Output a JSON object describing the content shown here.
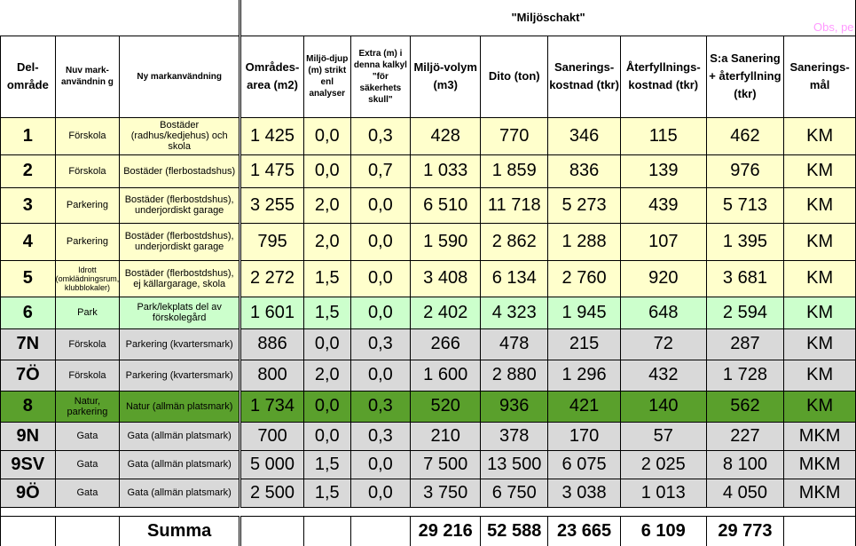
{
  "banner": {
    "title": "\"Miljöschakt\"",
    "obs": "Obs, pe"
  },
  "headers": {
    "zone": "Del-område",
    "current_use": "Nuv mark-användnin g",
    "new_use": "Ny markanvändning",
    "area": "Områdes-area (m2)",
    "depth": "Miljö-djup (m) strikt enl analyser",
    "extra": "Extra (m) i denna kalkyl \"för säkerhets skull\"",
    "volume": "Miljö-volym (m3)",
    "tons": "Dito (ton)",
    "remediation_cost": "Sanerings-kostnad (tkr)",
    "backfill_cost": "Återfyllnings-kostnad (tkr)",
    "total_cost": "S:a Sanering + återfyllning (tkr)",
    "target": "Sanerings-mål"
  },
  "rows": [
    {
      "zone": "1",
      "current": "Förskola",
      "new": "Bostäder (radhus/kedjehus) och skola",
      "area": "1 425",
      "depth": "0,0",
      "extra": "0,3",
      "volume": "428",
      "tons": "770",
      "rem": "346",
      "back": "115",
      "total": "462",
      "target": "KM"
    },
    {
      "zone": "2",
      "current": "Förskola",
      "new": "Bostäder (flerbostadshus)",
      "area": "1 475",
      "depth": "0,0",
      "extra": "0,7",
      "volume": "1 033",
      "tons": "1 859",
      "rem": "836",
      "back": "139",
      "total": "976",
      "target": "KM"
    },
    {
      "zone": "3",
      "current": "Parkering",
      "new": "Bostäder (flerbostdshus), underjordiskt garage",
      "area": "3 255",
      "depth": "2,0",
      "extra": "0,0",
      "volume": "6 510",
      "tons": "11 718",
      "rem": "5 273",
      "back": "439",
      "total": "5 713",
      "target": "KM"
    },
    {
      "zone": "4",
      "current": "Parkering",
      "new": "Bostäder (flerbostdshus), underjordiskt garage",
      "area": "795",
      "depth": "2,0",
      "extra": "0,0",
      "volume": "1 590",
      "tons": "2 862",
      "rem": "1 288",
      "back": "107",
      "total": "1 395",
      "target": "KM"
    },
    {
      "zone": "5",
      "current": "Idrott (omklädningsrum, klubblokaler)",
      "new": "Bostäder (flerbostdshus), ej källargarage, skola",
      "area": "2 272",
      "depth": "1,5",
      "extra": "0,0",
      "volume": "3 408",
      "tons": "6 134",
      "rem": "2 760",
      "back": "920",
      "total": "3 681",
      "target": "KM"
    },
    {
      "zone": "6",
      "current": "Park",
      "new": "Park/lekplats del av förskolegård",
      "area": "1 601",
      "depth": "1,5",
      "extra": "0,0",
      "volume": "2 402",
      "tons": "4 323",
      "rem": "1 945",
      "back": "648",
      "total": "2 594",
      "target": "KM"
    },
    {
      "zone": "7N",
      "current": "Förskola",
      "new": "Parkering (kvartersmark)",
      "area": "886",
      "depth": "0,0",
      "extra": "0,3",
      "volume": "266",
      "tons": "478",
      "rem": "215",
      "back": "72",
      "total": "287",
      "target": "KM"
    },
    {
      "zone": "7Ö",
      "current": "Förskola",
      "new": "Parkering (kvartersmark)",
      "area": "800",
      "depth": "2,0",
      "extra": "0,0",
      "volume": "1 600",
      "tons": "2 880",
      "rem": "1 296",
      "back": "432",
      "total": "1 728",
      "target": "KM"
    },
    {
      "zone": "8",
      "current": "Natur, parkering",
      "new": "Natur (allmän platsmark)",
      "area": "1 734",
      "depth": "0,0",
      "extra": "0,3",
      "volume": "520",
      "tons": "936",
      "rem": "421",
      "back": "140",
      "total": "562",
      "target": "KM"
    },
    {
      "zone": "9N",
      "current": "Gata",
      "new": "Gata (allmän platsmark)",
      "area": "700",
      "depth": "0,0",
      "extra": "0,3",
      "volume": "210",
      "tons": "378",
      "rem": "170",
      "back": "57",
      "total": "227",
      "target": "MKM"
    },
    {
      "zone": "9SV",
      "current": "Gata",
      "new": "Gata (allmän platsmark)",
      "area": "5 000",
      "depth": "1,5",
      "extra": "0,0",
      "volume": "7 500",
      "tons": "13 500",
      "rem": "6 075",
      "back": "2 025",
      "total": "8 100",
      "target": "MKM"
    },
    {
      "zone": "9Ö",
      "current": "Gata",
      "new": "Gata (allmän platsmark)",
      "area": "2 500",
      "depth": "1,5",
      "extra": "0,0",
      "volume": "3 750",
      "tons": "6 750",
      "rem": "3 038",
      "back": "1 013",
      "total": "4 050",
      "target": "MKM"
    }
  ],
  "summary": {
    "label": "Summa",
    "volume": "29 216",
    "tons": "52 588",
    "rem": "23 665",
    "back": "6 109",
    "total": "29 773"
  },
  "colors": {
    "yellow": "#FFFFCC",
    "light_green": "#CCFFCC",
    "gray": "#D9D9D9",
    "dark_green": "#5AA02C",
    "obs_pink": "#FF9BFF"
  }
}
